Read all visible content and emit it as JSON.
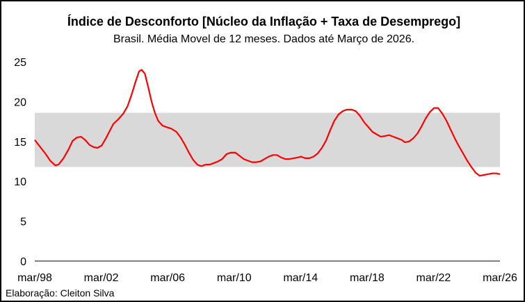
{
  "chart_data": {
    "type": "line",
    "title": "Índice de Desconforto [Núcleo da Inflação + Taxa de Desemprego]",
    "subtitle": "Brasil. Média Movel de 12 meses. Dados até Março de 2026.",
    "xlabel": "",
    "ylabel": "",
    "ylim": [
      0,
      25
    ],
    "yticks": [
      0,
      5,
      10,
      15,
      20,
      25
    ],
    "xlim": [
      1998.17,
      2026.17
    ],
    "xticks": [
      {
        "value": 1998.17,
        "label": "mar/98"
      },
      {
        "value": 2002.17,
        "label": "mar/02"
      },
      {
        "value": 2006.17,
        "label": "mar/06"
      },
      {
        "value": 2010.17,
        "label": "mar/10"
      },
      {
        "value": 2014.17,
        "label": "mar/14"
      },
      {
        "value": 2018.17,
        "label": "mar/18"
      },
      {
        "value": 2022.17,
        "label": "mar/22"
      },
      {
        "value": 2026.17,
        "label": "mar/26"
      }
    ],
    "grid": false,
    "legend": "none",
    "band": {
      "from": 11.8,
      "to": 18.6,
      "color": "#d9d9d9"
    },
    "series": [
      {
        "color": "#ff0000",
        "points": [
          [
            1998.17,
            15.2
          ],
          [
            1998.5,
            14.3
          ],
          [
            1998.8,
            13.5
          ],
          [
            1999.1,
            12.6
          ],
          [
            1999.4,
            12.0
          ],
          [
            1999.6,
            12.1
          ],
          [
            1999.9,
            12.9
          ],
          [
            2000.2,
            14.0
          ],
          [
            2000.45,
            15.1
          ],
          [
            2000.7,
            15.5
          ],
          [
            2000.95,
            15.6
          ],
          [
            2001.2,
            15.2
          ],
          [
            2001.45,
            14.6
          ],
          [
            2001.7,
            14.3
          ],
          [
            2001.95,
            14.2
          ],
          [
            2002.2,
            14.5
          ],
          [
            2002.45,
            15.4
          ],
          [
            2002.7,
            16.4
          ],
          [
            2002.9,
            17.2
          ],
          [
            2003.2,
            17.8
          ],
          [
            2003.5,
            18.5
          ],
          [
            2003.75,
            19.4
          ],
          [
            2004.0,
            20.9
          ],
          [
            2004.25,
            22.6
          ],
          [
            2004.45,
            23.8
          ],
          [
            2004.6,
            24.0
          ],
          [
            2004.8,
            23.5
          ],
          [
            2005.0,
            21.8
          ],
          [
            2005.2,
            20.0
          ],
          [
            2005.4,
            18.6
          ],
          [
            2005.6,
            17.6
          ],
          [
            2005.85,
            17.0
          ],
          [
            2006.1,
            16.8
          ],
          [
            2006.4,
            16.6
          ],
          [
            2006.7,
            16.2
          ],
          [
            2006.95,
            15.5
          ],
          [
            2007.2,
            14.6
          ],
          [
            2007.45,
            13.6
          ],
          [
            2007.7,
            12.7
          ],
          [
            2007.95,
            12.1
          ],
          [
            2008.2,
            11.9
          ],
          [
            2008.45,
            12.1
          ],
          [
            2008.7,
            12.1
          ],
          [
            2008.95,
            12.3
          ],
          [
            2009.2,
            12.5
          ],
          [
            2009.45,
            12.8
          ],
          [
            2009.7,
            13.4
          ],
          [
            2009.95,
            13.6
          ],
          [
            2010.25,
            13.6
          ],
          [
            2010.5,
            13.2
          ],
          [
            2010.75,
            12.8
          ],
          [
            2011.0,
            12.6
          ],
          [
            2011.25,
            12.4
          ],
          [
            2011.5,
            12.4
          ],
          [
            2011.75,
            12.5
          ],
          [
            2012.0,
            12.8
          ],
          [
            2012.25,
            13.1
          ],
          [
            2012.5,
            13.3
          ],
          [
            2012.75,
            13.3
          ],
          [
            2013.0,
            13.0
          ],
          [
            2013.25,
            12.8
          ],
          [
            2013.5,
            12.8
          ],
          [
            2013.75,
            12.9
          ],
          [
            2014.0,
            13.0
          ],
          [
            2014.2,
            13.1
          ],
          [
            2014.45,
            12.9
          ],
          [
            2014.7,
            12.9
          ],
          [
            2014.95,
            13.1
          ],
          [
            2015.2,
            13.5
          ],
          [
            2015.45,
            14.2
          ],
          [
            2015.7,
            15.1
          ],
          [
            2015.95,
            16.4
          ],
          [
            2016.2,
            17.6
          ],
          [
            2016.45,
            18.4
          ],
          [
            2016.7,
            18.8
          ],
          [
            2016.95,
            19.0
          ],
          [
            2017.25,
            19.0
          ],
          [
            2017.5,
            18.8
          ],
          [
            2017.75,
            18.2
          ],
          [
            2018.0,
            17.4
          ],
          [
            2018.25,
            16.8
          ],
          [
            2018.5,
            16.2
          ],
          [
            2018.75,
            15.9
          ],
          [
            2019.0,
            15.6
          ],
          [
            2019.25,
            15.7
          ],
          [
            2019.5,
            15.8
          ],
          [
            2019.75,
            15.6
          ],
          [
            2020.0,
            15.4
          ],
          [
            2020.25,
            15.2
          ],
          [
            2020.45,
            14.9
          ],
          [
            2020.7,
            15.0
          ],
          [
            2020.95,
            15.4
          ],
          [
            2021.2,
            16.0
          ],
          [
            2021.45,
            16.9
          ],
          [
            2021.7,
            17.9
          ],
          [
            2021.95,
            18.7
          ],
          [
            2022.2,
            19.2
          ],
          [
            2022.45,
            19.2
          ],
          [
            2022.7,
            18.5
          ],
          [
            2022.95,
            17.6
          ],
          [
            2023.2,
            16.5
          ],
          [
            2023.45,
            15.4
          ],
          [
            2023.7,
            14.4
          ],
          [
            2023.95,
            13.5
          ],
          [
            2024.2,
            12.6
          ],
          [
            2024.45,
            11.8
          ],
          [
            2024.7,
            11.1
          ],
          [
            2024.95,
            10.7
          ],
          [
            2025.2,
            10.8
          ],
          [
            2025.45,
            10.9
          ],
          [
            2025.7,
            11.0
          ],
          [
            2025.95,
            11.0
          ],
          [
            2026.17,
            10.9
          ]
        ]
      }
    ]
  },
  "footer": {
    "credit": "Elaboração: Cleiton Silva"
  }
}
